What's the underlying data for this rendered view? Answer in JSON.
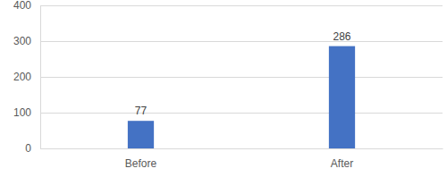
{
  "chart_data": {
    "type": "bar",
    "categories": [
      "Before",
      "After"
    ],
    "values": [
      77,
      286
    ],
    "color": "#4472c4",
    "ylim": [
      0,
      400
    ],
    "yticks": [
      0,
      100,
      200,
      300,
      400
    ],
    "grid": true,
    "data_labels": true
  }
}
